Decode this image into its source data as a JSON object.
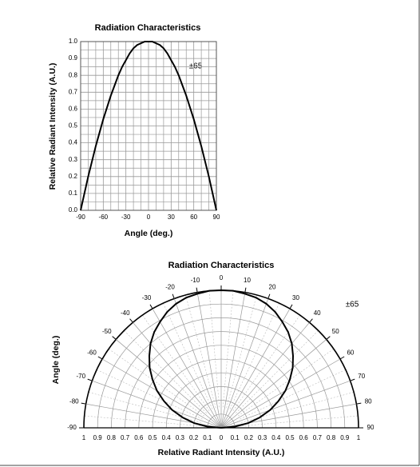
{
  "chart_data": [
    {
      "type": "line",
      "title": "Radiation Characteristics",
      "x_label": "Angle (deg.)",
      "y_label": "Relative Radiant Intensity (A.U.)",
      "annotation": "±65",
      "x": [
        -90,
        -85,
        -80,
        -75,
        -70,
        -65,
        -60,
        -55,
        -50,
        -45,
        -40,
        -35,
        -30,
        -25,
        -20,
        -15,
        -10,
        -5,
        0,
        5,
        10,
        15,
        20,
        25,
        30,
        35,
        40,
        45,
        50,
        55,
        60,
        65,
        70,
        75,
        80,
        85,
        90
      ],
      "values": [
        0,
        0.1,
        0.2,
        0.29,
        0.38,
        0.46,
        0.54,
        0.61,
        0.68,
        0.74,
        0.8,
        0.85,
        0.89,
        0.93,
        0.96,
        0.98,
        0.99,
        1,
        1,
        1,
        0.99,
        0.98,
        0.96,
        0.93,
        0.89,
        0.85,
        0.8,
        0.74,
        0.68,
        0.61,
        0.54,
        0.46,
        0.38,
        0.29,
        0.2,
        0.1,
        0
      ],
      "color": "#000000",
      "xlim": [
        -90,
        90
      ],
      "xticks": [
        -90,
        -60,
        -30,
        0,
        30,
        60,
        90
      ],
      "ylim": [
        0,
        1
      ],
      "yticks": [
        {
          "value": 0,
          "label": "0.0"
        },
        0.1,
        0.2,
        0.3,
        0.4,
        0.5,
        0.6,
        0.7,
        0.8,
        0.9,
        {
          "value": 1,
          "label": "1.0"
        }
      ],
      "grid": true
    },
    {
      "type": "polar",
      "title": "Radiation Characteristics",
      "x_label": "Relative Radiant Intensity (A.U.)",
      "y_label": "Angle (deg.)",
      "annotation": "±65",
      "theta": [
        -90,
        -85,
        -80,
        -75,
        -70,
        -65,
        -60,
        -55,
        -50,
        -45,
        -40,
        -35,
        -30,
        -25,
        -20,
        -15,
        -10,
        -5,
        0,
        5,
        10,
        15,
        20,
        25,
        30,
        35,
        40,
        45,
        50,
        55,
        60,
        65,
        70,
        75,
        80,
        85,
        90
      ],
      "values": [
        0,
        0.1,
        0.2,
        0.29,
        0.38,
        0.46,
        0.54,
        0.61,
        0.68,
        0.74,
        0.8,
        0.85,
        0.89,
        0.93,
        0.96,
        0.98,
        0.99,
        1,
        1,
        1,
        0.99,
        0.98,
        0.96,
        0.93,
        0.89,
        0.85,
        0.8,
        0.74,
        0.68,
        0.61,
        0.54,
        0.46,
        0.38,
        0.29,
        0.2,
        0.1,
        0
      ],
      "color": "#000000",
      "rlim": [
        0,
        1
      ],
      "rticks": [
        0,
        0.1,
        0.2,
        0.3,
        0.4,
        0.5,
        0.6,
        0.7,
        0.8,
        0.9,
        1
      ],
      "thetaticks": [
        -90,
        -80,
        -70,
        -60,
        -50,
        -40,
        -30,
        -20,
        -10,
        0,
        10,
        20,
        30,
        40,
        50,
        60,
        70,
        80,
        90
      ],
      "grid": true
    }
  ]
}
